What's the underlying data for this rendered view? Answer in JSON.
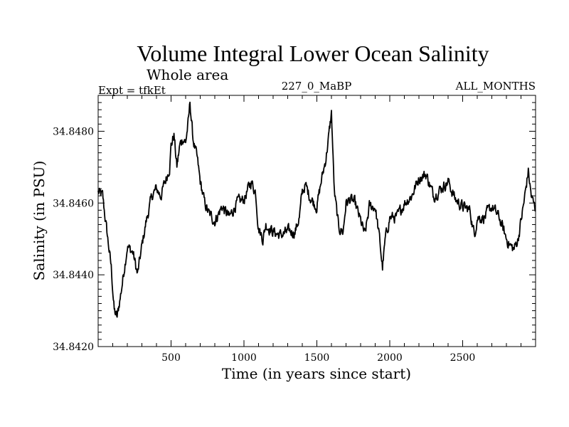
{
  "chart_data": {
    "type": "line",
    "title": "Volume Integral Lower Ocean Salinity",
    "subtitle": "Whole area",
    "annotations": {
      "left": "Expt = tfkEt",
      "center": "227_0_MaBP",
      "right": "ALL_MONTHS"
    },
    "xlabel": "Time (in years since start)",
    "ylabel": "Salinity (in PSU)",
    "xlim": [
      0,
      3000
    ],
    "ylim": [
      34.842,
      34.849
    ],
    "x_ticks": [
      500,
      1000,
      1500,
      2000,
      2500
    ],
    "x_tick_labels": [
      "500",
      "1000",
      "1500",
      "2000",
      "2500"
    ],
    "y_ticks": [
      34.842,
      34.844,
      34.846,
      34.848
    ],
    "y_tick_labels": [
      "34.8420",
      "34.8440",
      "34.8460",
      "34.8480"
    ],
    "grid": false,
    "series": [
      {
        "color": "#000000",
        "x": [
          0,
          30,
          60,
          90,
          110,
          130,
          160,
          200,
          240,
          270,
          300,
          330,
          370,
          400,
          430,
          460,
          490,
          500,
          520,
          540,
          560,
          580,
          600,
          620,
          630,
          650,
          680,
          700,
          730,
          760,
          800,
          850,
          900,
          950,
          1000,
          1050,
          1080,
          1100,
          1130,
          1150,
          1200,
          1250,
          1300,
          1350,
          1380,
          1400,
          1420,
          1450,
          1480,
          1500,
          1530,
          1560,
          1580,
          1600,
          1620,
          1650,
          1680,
          1700,
          1730,
          1760,
          1800,
          1830,
          1860,
          1900,
          1930,
          1950,
          1970,
          2000,
          2050,
          2100,
          2150,
          2200,
          2250,
          2300,
          2350,
          2400,
          2450,
          2500,
          2550,
          2580,
          2600,
          2650,
          2700,
          2750,
          2800,
          2830,
          2850,
          2880,
          2900,
          2920,
          2950,
          2970,
          3000
        ],
        "y": [
          34.8463,
          34.8462,
          34.8452,
          34.8442,
          34.843,
          34.8428,
          34.8436,
          34.8448,
          34.8446,
          34.844,
          34.8448,
          34.8455,
          34.8462,
          34.8464,
          34.8462,
          34.8466,
          34.847,
          34.8476,
          34.8479,
          34.847,
          34.8476,
          34.8478,
          34.8477,
          34.8483,
          34.8488,
          34.8478,
          34.8472,
          34.8466,
          34.846,
          34.8457,
          34.8455,
          34.8459,
          34.8456,
          34.846,
          34.8461,
          34.8466,
          34.8463,
          34.8453,
          34.845,
          34.8454,
          34.8452,
          34.8451,
          34.8452,
          34.8452,
          34.8456,
          34.8463,
          34.8465,
          34.8462,
          34.846,
          34.8459,
          34.8466,
          34.8472,
          34.8478,
          34.8485,
          34.8463,
          34.8453,
          34.8452,
          34.846,
          34.8461,
          34.846,
          34.8455,
          34.8451,
          34.8459,
          34.8459,
          34.845,
          34.8442,
          34.845,
          34.8456,
          34.8456,
          34.846,
          34.8462,
          34.8467,
          34.8468,
          34.8462,
          34.8464,
          34.8466,
          34.8461,
          34.8459,
          34.8458,
          34.8451,
          34.8456,
          34.8456,
          34.8459,
          34.8456,
          34.845,
          34.8448,
          34.8447,
          34.845,
          34.8455,
          34.846,
          34.8469,
          34.8462,
          34.8458
        ]
      }
    ]
  }
}
